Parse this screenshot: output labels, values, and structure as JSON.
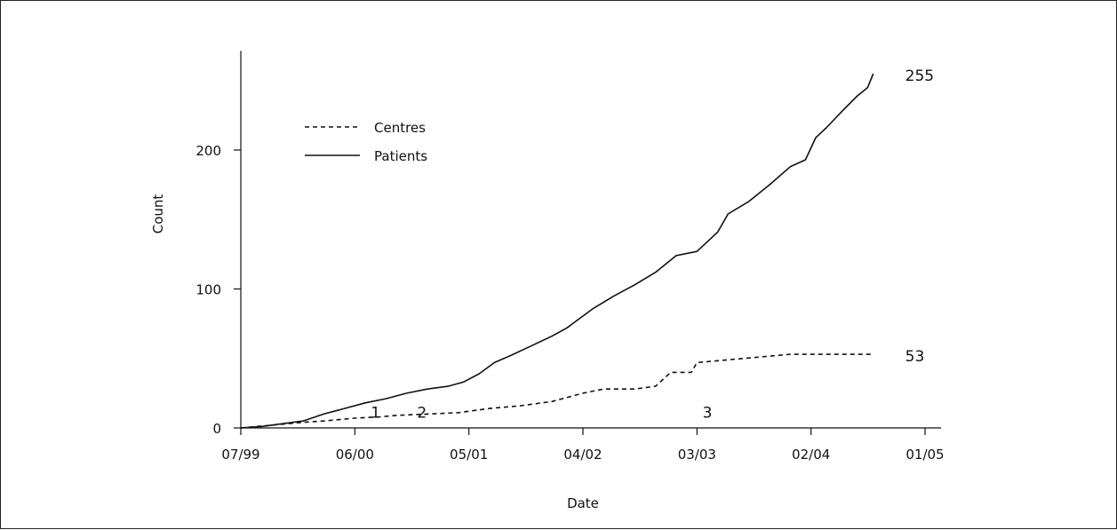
{
  "chart_data": {
    "type": "line",
    "xlabel": "Date",
    "ylabel": "Count",
    "x_ticks": [
      "07/99",
      "06/00",
      "05/01",
      "04/02",
      "03/03",
      "02/04",
      "01/05"
    ],
    "x_range": [
      "1999-07",
      "2005-01"
    ],
    "y_ticks": [
      0,
      100,
      200
    ],
    "ylim": [
      0,
      265
    ],
    "legend": {
      "placement": "top-left"
    },
    "series": [
      {
        "name": "Centres",
        "style": "dashed",
        "color": "#111111",
        "end_label": "53",
        "points": [
          [
            "1999-07-01",
            0
          ],
          [
            "1999-10-01",
            2
          ],
          [
            "2000-01-01",
            4
          ],
          [
            "2000-03-01",
            5
          ],
          [
            "2000-06-01",
            7
          ],
          [
            "2000-08-15",
            8
          ],
          [
            "2000-10-01",
            9
          ],
          [
            "2001-01-01",
            10
          ],
          [
            "2001-04-01",
            11
          ],
          [
            "2001-07-01",
            14
          ],
          [
            "2001-10-01",
            16
          ],
          [
            "2002-01-01",
            19
          ],
          [
            "2002-04-01",
            25
          ],
          [
            "2002-06-01",
            28
          ],
          [
            "2002-09-01",
            28
          ],
          [
            "2002-11-01",
            30
          ],
          [
            "2002-12-15",
            40
          ],
          [
            "2003-02-15",
            40
          ],
          [
            "2003-03-01",
            47
          ],
          [
            "2003-06-01",
            49
          ],
          [
            "2003-09-01",
            51
          ],
          [
            "2003-12-01",
            53
          ],
          [
            "2004-06-01",
            53
          ],
          [
            "2004-08-01",
            53
          ]
        ]
      },
      {
        "name": "Patients",
        "style": "solid",
        "color": "#111111",
        "end_label": "255",
        "points": [
          [
            "1999-07-01",
            0
          ],
          [
            "1999-09-01",
            1
          ],
          [
            "1999-11-01",
            3
          ],
          [
            "2000-01-01",
            5
          ],
          [
            "2000-03-01",
            10
          ],
          [
            "2000-05-01",
            14
          ],
          [
            "2000-07-01",
            18
          ],
          [
            "2000-09-01",
            21
          ],
          [
            "2000-11-01",
            25
          ],
          [
            "2001-01-01",
            28
          ],
          [
            "2001-03-01",
            30
          ],
          [
            "2001-04-15",
            33
          ],
          [
            "2001-06-01",
            39
          ],
          [
            "2001-07-15",
            47
          ],
          [
            "2001-09-01",
            52
          ],
          [
            "2001-11-01",
            59
          ],
          [
            "2002-01-01",
            66
          ],
          [
            "2002-02-15",
            72
          ],
          [
            "2002-03-01",
            75
          ],
          [
            "2002-05-01",
            86
          ],
          [
            "2002-07-01",
            95
          ],
          [
            "2002-09-01",
            103
          ],
          [
            "2002-11-01",
            112
          ],
          [
            "2003-01-01",
            124
          ],
          [
            "2003-03-01",
            127
          ],
          [
            "2003-04-01",
            134
          ],
          [
            "2003-05-01",
            141
          ],
          [
            "2003-06-01",
            154
          ],
          [
            "2003-08-01",
            163
          ],
          [
            "2003-10-01",
            175
          ],
          [
            "2003-12-01",
            188
          ],
          [
            "2004-01-15",
            193
          ],
          [
            "2004-02-15",
            209
          ],
          [
            "2004-03-15",
            216
          ],
          [
            "2004-05-01",
            228
          ],
          [
            "2004-06-15",
            239
          ],
          [
            "2004-07-15",
            245
          ],
          [
            "2004-08-01",
            255
          ]
        ]
      }
    ],
    "annotations": [
      {
        "text": "1",
        "x": "2000-08-01",
        "y": 8
      },
      {
        "text": "2",
        "x": "2000-12-15",
        "y": 8
      },
      {
        "text": "3",
        "x": "2003-04-01",
        "y": 8
      }
    ]
  }
}
